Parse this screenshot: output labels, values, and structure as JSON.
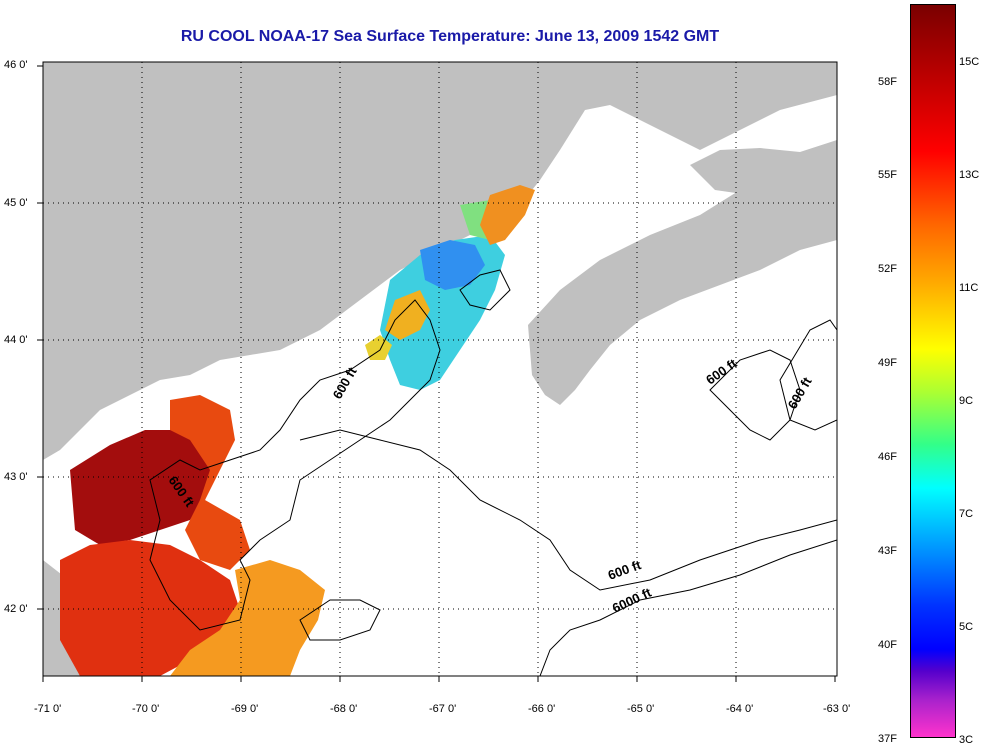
{
  "title": "RU COOL  NOAA-17  Sea Surface Temperature:  June 13, 2009 1542 GMT",
  "latitude_labels": [
    "46 0'",
    "45 0'",
    "44 0'",
    "43 0'",
    "42 0'"
  ],
  "longitude_labels": [
    "-71 0'",
    "-70 0'",
    "-69 0'",
    "-68 0'",
    "-67 0'",
    "-66 0'",
    "-65 0'",
    "-64 0'",
    "-63 0'"
  ],
  "contour_labels": [
    "600 ft",
    "600 ft",
    "600 ft",
    "600 ft",
    "600 ft",
    "6000 ft"
  ],
  "colorbar": {
    "fahrenheit_labels": [
      "58F",
      "55F",
      "52F",
      "49F",
      "46F",
      "43F",
      "40F",
      "37F"
    ],
    "celsius_labels": [
      "15C",
      "13C",
      "11C",
      "9C",
      "7C",
      "5C",
      "3C"
    ]
  },
  "colors": {
    "title": "#1a1aa8",
    "land": "#c0c0c0",
    "ocean": "#ffffff",
    "grid": "#000000"
  }
}
